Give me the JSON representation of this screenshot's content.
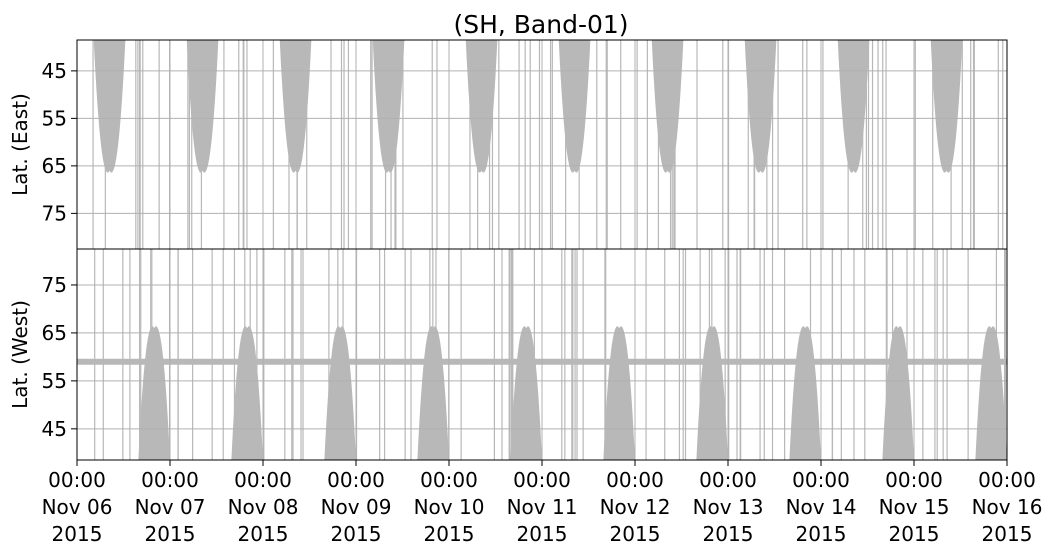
{
  "chart_data": {
    "type": "scatter",
    "title": "(SH, Band-01)",
    "colors": {
      "marks": "#b8b8b8",
      "grid": "#b0b0b0",
      "axes": "#000000"
    },
    "x_range": [
      "2015-11-06 00:00",
      "2015-11-16 00:00"
    ],
    "x_ticks": [
      {
        "line1": "00:00",
        "line2": "Nov 06",
        "line3": "2015"
      },
      {
        "line1": "00:00",
        "line2": "Nov 07",
        "line3": "2015"
      },
      {
        "line1": "00:00",
        "line2": "Nov 08",
        "line3": "2015"
      },
      {
        "line1": "00:00",
        "line2": "Nov 09",
        "line3": "2015"
      },
      {
        "line1": "00:00",
        "line2": "Nov 10",
        "line3": "2015"
      },
      {
        "line1": "00:00",
        "line2": "Nov 11",
        "line3": "2015"
      },
      {
        "line1": "00:00",
        "line2": "Nov 12",
        "line3": "2015"
      },
      {
        "line1": "00:00",
        "line2": "Nov 13",
        "line3": "2015"
      },
      {
        "line1": "00:00",
        "line2": "Nov 14",
        "line3": "2015"
      },
      {
        "line1": "00:00",
        "line2": "Nov 15",
        "line3": "2015"
      },
      {
        "line1": "00:00",
        "line2": "Nov 16",
        "line3": "2015"
      }
    ],
    "panels": [
      {
        "name": "east",
        "ylabel": "Lat. (East)",
        "ylim": [
          38.5,
          82.5
        ],
        "inverted": true,
        "yticks": [
          "45",
          "55",
          "65",
          "75"
        ],
        "grid": true,
        "coverage_arcs": [
          {
            "center_day": 0.35,
            "half_width_day": 0.17,
            "extreme_lat": 66
          },
          {
            "center_day": 1.35,
            "half_width_day": 0.17,
            "extreme_lat": 66
          },
          {
            "center_day": 2.35,
            "half_width_day": 0.17,
            "extreme_lat": 66
          },
          {
            "center_day": 3.35,
            "half_width_day": 0.17,
            "extreme_lat": 66
          },
          {
            "center_day": 4.35,
            "half_width_day": 0.17,
            "extreme_lat": 66
          },
          {
            "center_day": 5.35,
            "half_width_day": 0.17,
            "extreme_lat": 66
          },
          {
            "center_day": 6.35,
            "half_width_day": 0.17,
            "extreme_lat": 66
          },
          {
            "center_day": 7.35,
            "half_width_day": 0.17,
            "extreme_lat": 66
          },
          {
            "center_day": 8.35,
            "half_width_day": 0.17,
            "extreme_lat": 66
          },
          {
            "center_day": 9.35,
            "half_width_day": 0.17,
            "extreme_lat": 66
          }
        ]
      },
      {
        "name": "west",
        "ylabel": "Lat. (West)",
        "ylim": [
          38.5,
          82.5
        ],
        "inverted": false,
        "yticks": [
          "75",
          "65",
          "55",
          "45"
        ],
        "grid": true,
        "constant_band_lat": 59,
        "coverage_arcs": [
          {
            "center_day": 0.83,
            "half_width_day": 0.17,
            "extreme_lat": 66
          },
          {
            "center_day": 1.83,
            "half_width_day": 0.17,
            "extreme_lat": 66
          },
          {
            "center_day": 2.83,
            "half_width_day": 0.17,
            "extreme_lat": 66
          },
          {
            "center_day": 3.83,
            "half_width_day": 0.17,
            "extreme_lat": 66
          },
          {
            "center_day": 4.83,
            "half_width_day": 0.17,
            "extreme_lat": 66
          },
          {
            "center_day": 5.83,
            "half_width_day": 0.17,
            "extreme_lat": 66
          },
          {
            "center_day": 6.83,
            "half_width_day": 0.17,
            "extreme_lat": 66
          },
          {
            "center_day": 7.83,
            "half_width_day": 0.17,
            "extreme_lat": 66
          },
          {
            "center_day": 8.83,
            "half_width_day": 0.17,
            "extreme_lat": 66
          },
          {
            "center_day": 9.83,
            "half_width_day": 0.17,
            "extreme_lat": 66
          }
        ]
      }
    ]
  }
}
